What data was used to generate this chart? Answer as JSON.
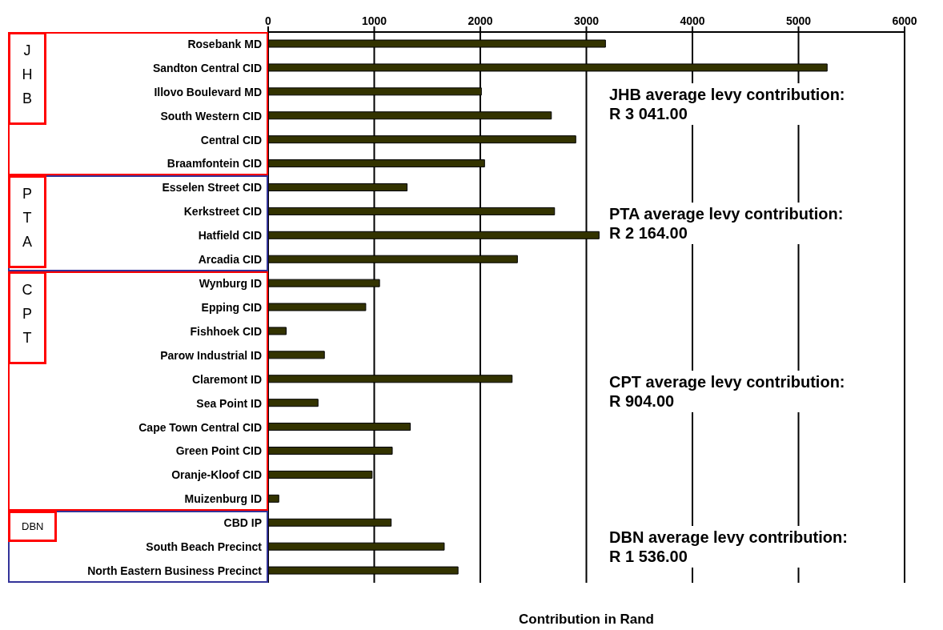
{
  "chart_data": {
    "type": "bar",
    "orientation": "horizontal",
    "categories": [
      "Rosebank MD",
      "Sandton Central CID",
      "Illovo Boulevard MD",
      "South Western CID",
      "Central CID",
      "Braamfontein CID",
      "Esselen Street CID",
      "Kerkstreet CID",
      "Hatfield CID",
      "Arcadia CID",
      "Wynburg ID",
      "Epping CID",
      "Fishhoek CID",
      "Parow Industrial ID",
      "Claremont ID",
      "Sea Point ID",
      "Cape Town Central CID",
      "Green Point CID",
      "Oranje-Kloof CID",
      "Muizenburg ID",
      "CBD IP",
      "South Beach Precinct",
      "North Eastern Business Precinct"
    ],
    "values": [
      3180,
      5270,
      2010,
      2670,
      2900,
      2040,
      1310,
      2700,
      3120,
      2350,
      1050,
      920,
      170,
      530,
      2300,
      470,
      1340,
      1170,
      980,
      100,
      1160,
      1660,
      1790
    ],
    "color": "#333300",
    "xlim": [
      0,
      6000
    ],
    "xticks": [
      0,
      1000,
      2000,
      3000,
      4000,
      5000,
      6000
    ],
    "grid": "x",
    "xlabel": "Contribution in Rand",
    "annotations": [
      "JHB",
      "JHB average levy contribution:\nR 3 041.00",
      "PTA",
      "PTA average levy contribution:\nR 2 164.00",
      "CPT",
      "CPT average levy contribution:\nR 904.00",
      "DBN",
      "DBN average levy contribution:\nR 1 536.00"
    ]
  }
}
